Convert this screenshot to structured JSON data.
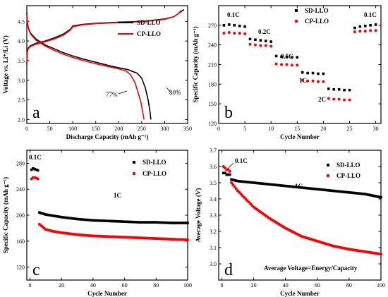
{
  "chart_data": [
    {
      "type": "line",
      "panel": "a",
      "xlabel": "Discharge Capacity (mAh g⁻¹)",
      "ylabel": "Voltage vs. Li⁺/Li (V)",
      "xlim": [
        0,
        350
      ],
      "ylim": [
        1.9,
        4.9
      ],
      "xticks": [
        0,
        50,
        100,
        150,
        200,
        250,
        300,
        350
      ],
      "yticks": [
        2.0,
        2.5,
        3.0,
        3.5,
        4.0,
        4.5
      ],
      "series": [
        {
          "name": "SD-LLO",
          "color": "#000000",
          "curves": [
            {
              "x": [
                0,
                1,
                3,
                8,
                20,
                40,
                60,
                80,
                95,
                100,
                120,
                150,
                200,
                250,
                300,
                320,
                330,
                337,
                342
              ],
              "y": [
                3.4,
                3.75,
                3.82,
                3.88,
                3.94,
                4.0,
                4.08,
                4.18,
                4.3,
                4.38,
                4.42,
                4.45,
                4.48,
                4.5,
                4.56,
                4.62,
                4.7,
                4.76,
                4.8
              ]
            },
            {
              "x": [
                0,
                1,
                3,
                8,
                20,
                40,
                60,
                80,
                100,
                120,
                150,
                180,
                200,
                220,
                240,
                250,
                258,
                264,
                268,
                270
              ],
              "y": [
                4.72,
                4.5,
                4.35,
                4.2,
                4.05,
                3.9,
                3.8,
                3.7,
                3.62,
                3.55,
                3.46,
                3.37,
                3.32,
                3.27,
                3.18,
                3.05,
                2.8,
                2.5,
                2.2,
                2.0
              ]
            }
          ]
        },
        {
          "name": "CP-LLO",
          "color": "#ff0000",
          "curves": [
            {
              "x": [
                0,
                1,
                3,
                8,
                20,
                40,
                60,
                80,
                95,
                100,
                120,
                150,
                200,
                250,
                300,
                320,
                330,
                336
              ],
              "y": [
                3.4,
                3.72,
                3.8,
                3.86,
                3.92,
                3.98,
                4.05,
                4.15,
                4.28,
                4.36,
                4.41,
                4.44,
                4.47,
                4.49,
                4.55,
                4.62,
                4.7,
                4.78
              ]
            },
            {
              "x": [
                0,
                1,
                3,
                8,
                20,
                40,
                60,
                80,
                100,
                120,
                150,
                180,
                200,
                215,
                225,
                235,
                242,
                248,
                252,
                255
              ],
              "y": [
                4.7,
                4.48,
                4.33,
                4.18,
                4.02,
                3.87,
                3.76,
                3.66,
                3.58,
                3.51,
                3.42,
                3.34,
                3.29,
                3.24,
                3.15,
                2.95,
                2.7,
                2.45,
                2.2,
                2.0
              ]
            }
          ]
        }
      ],
      "annotations": [
        "77%",
        "80%"
      ],
      "legend": "right",
      "panel_label": "a"
    },
    {
      "type": "scatter",
      "panel": "b",
      "xlabel": "Cycle Number",
      "ylabel": "Specific Capacity (mAh g⁻¹)",
      "xlim": [
        0,
        31
      ],
      "ylim": [
        120,
        300
      ],
      "xticks": [
        0,
        5,
        10,
        15,
        20,
        25,
        30
      ],
      "yticks": [
        120,
        150,
        180,
        210,
        240,
        270
      ],
      "series": [
        {
          "name": "SD-LLO",
          "color": "#000000",
          "marker": "square",
          "x": [
            1,
            2,
            3,
            4,
            5,
            6,
            7,
            8,
            9,
            10,
            11,
            12,
            13,
            14,
            15,
            16,
            17,
            18,
            19,
            20,
            21,
            22,
            23,
            24,
            25,
            26,
            27,
            28,
            29,
            30
          ],
          "y": [
            270,
            271,
            270,
            269,
            268,
            249,
            248,
            247,
            246,
            245,
            223,
            222,
            222,
            221,
            221,
            198,
            197,
            197,
            196,
            196,
            173,
            172,
            172,
            171,
            171,
            266,
            268,
            269,
            270,
            271
          ]
        },
        {
          "name": "CP-LLO",
          "color": "#ff0000",
          "marker": "circle",
          "x": [
            1,
            2,
            3,
            4,
            5,
            6,
            7,
            8,
            9,
            10,
            11,
            12,
            13,
            14,
            15,
            16,
            17,
            18,
            19,
            20,
            21,
            22,
            23,
            24,
            25,
            26,
            27,
            28,
            29,
            30
          ],
          "y": [
            258,
            259,
            258,
            258,
            257,
            241,
            240,
            239,
            239,
            238,
            211,
            210,
            210,
            209,
            209,
            186,
            185,
            185,
            184,
            184,
            158,
            157,
            157,
            156,
            156,
            260,
            261,
            261,
            262,
            262
          ]
        }
      ],
      "annotations": [
        "0.1C",
        "0.2C",
        "0.5C",
        "1C",
        "2C",
        "0.1C"
      ],
      "legend": "top-right",
      "panel_label": "b"
    },
    {
      "type": "scatter",
      "panel": "c",
      "xlabel": "Cycle Number",
      "ylabel": "Specific Capacity (mAh g⁻¹)",
      "xlim": [
        -2,
        100
      ],
      "ylim": [
        100,
        300
      ],
      "xticks": [
        0,
        20,
        40,
        60,
        80,
        100
      ],
      "yticks": [
        120,
        160,
        200,
        240,
        280
      ],
      "series": [
        {
          "name": "SD-LLO",
          "color": "#000000",
          "marker": "square",
          "x": [
            1,
            2,
            3,
            4,
            5,
            6,
            10,
            15,
            20,
            30,
            40,
            50,
            60,
            70,
            80,
            90,
            100
          ],
          "y": [
            270,
            272,
            271,
            270,
            269,
            204,
            201,
            199,
            197,
            194,
            192,
            191,
            190,
            189,
            189,
            188,
            188
          ]
        },
        {
          "name": "CP-LLO",
          "color": "#ff0000",
          "marker": "circle",
          "x": [
            1,
            2,
            3,
            4,
            5,
            6,
            10,
            15,
            20,
            30,
            40,
            50,
            60,
            70,
            80,
            90,
            100
          ],
          "y": [
            256,
            258,
            258,
            257,
            256,
            186,
            178,
            175,
            173,
            170,
            168,
            167,
            166,
            165,
            164,
            163,
            162
          ]
        }
      ],
      "annotations": [
        "0.1C",
        "1C"
      ],
      "legend": "top-right",
      "panel_label": "c"
    },
    {
      "type": "scatter",
      "panel": "d",
      "xlabel": "Cycle Number",
      "ylabel": "Average Voltage (V)",
      "xlim": [
        -2,
        100
      ],
      "ylim": [
        2.9,
        3.7
      ],
      "xticks": [
        0,
        20,
        40,
        60,
        80,
        100
      ],
      "yticks": [
        3.0,
        3.1,
        3.2,
        3.3,
        3.4,
        3.5,
        3.6,
        3.7
      ],
      "series": [
        {
          "name": "SD-LLO",
          "color": "#000000",
          "marker": "square",
          "x": [
            1,
            2,
            3,
            4,
            5,
            6,
            10,
            20,
            30,
            40,
            50,
            60,
            70,
            80,
            90,
            100
          ],
          "y": [
            3.56,
            3.56,
            3.55,
            3.55,
            3.55,
            3.52,
            3.51,
            3.5,
            3.49,
            3.48,
            3.47,
            3.46,
            3.45,
            3.44,
            3.43,
            3.41
          ]
        },
        {
          "name": "CP-LLO",
          "color": "#ff0000",
          "marker": "circle",
          "x": [
            1,
            2,
            3,
            4,
            5,
            6,
            10,
            15,
            20,
            30,
            40,
            50,
            60,
            70,
            80,
            90,
            100
          ],
          "y": [
            3.6,
            3.59,
            3.58,
            3.58,
            3.57,
            3.5,
            3.45,
            3.4,
            3.35,
            3.28,
            3.22,
            3.17,
            3.14,
            3.11,
            3.09,
            3.075,
            3.06
          ]
        }
      ],
      "annotations": [
        "0.1C",
        "1C",
        "Average Voltage=Energy/Capacity"
      ],
      "legend": "top-right",
      "panel_label": "d"
    }
  ]
}
